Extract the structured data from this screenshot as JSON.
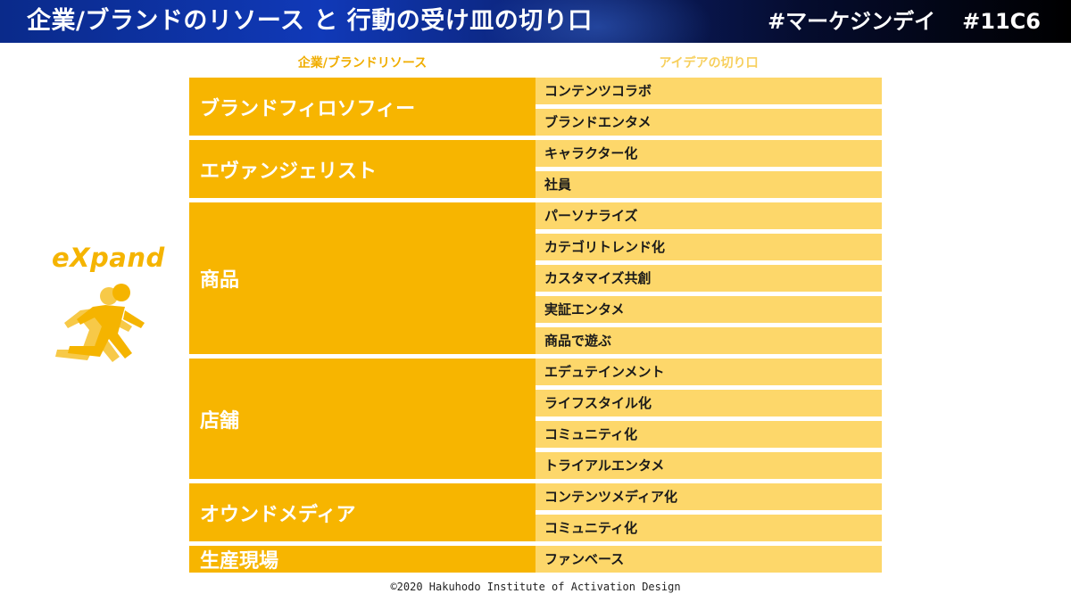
{
  "header": {
    "title": "企業/ブランドのリソース と 行動の受け皿の切り口",
    "hashtag": "#マーケジンデイ",
    "session": "#11C6"
  },
  "columns": {
    "left": "企業/ブランドリソース",
    "right": "アイデアの切り口"
  },
  "groups": [
    {
      "label": "ブランドフィロソフィー",
      "ideas": [
        "コンテンツコラボ",
        "ブランドエンタメ"
      ]
    },
    {
      "label": "エヴァンジェリスト",
      "ideas": [
        "キャラクター化",
        "社員"
      ]
    },
    {
      "label": "商品",
      "ideas": [
        "パーソナライズ",
        "カテゴリトレンド化",
        "カスタマイズ共創",
        "実証エンタメ",
        "商品で遊ぶ"
      ]
    },
    {
      "label": "店舗",
      "ideas": [
        "エデュテインメント",
        "ライフスタイル化",
        "コミュニティ化",
        "トライアルエンタメ"
      ]
    },
    {
      "label": "オウンドメディア",
      "ideas": [
        "コンテンツメディア化",
        "コミュニティ化"
      ]
    },
    {
      "label": "生産現場",
      "ideas": [
        "ファンベース"
      ]
    }
  ],
  "logo": {
    "text": "eXpand"
  },
  "footer": "©2020 Hakuhodo Institute of Activation Design",
  "colors": {
    "accent": "#f7b500",
    "idea_bg": "#fdd76a",
    "header_bg": "#0a2a8a"
  }
}
